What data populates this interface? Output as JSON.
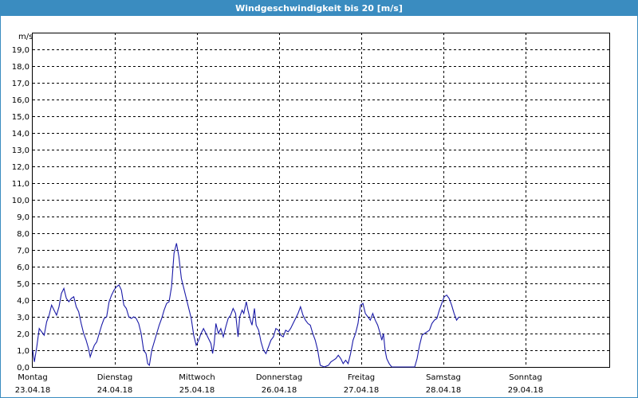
{
  "window": {
    "title": "Windgeschwindigkeit bis 20 [m/s]"
  },
  "colors": {
    "titlebar": "#3a8cc0",
    "line": "#1a1aa8",
    "grid": "#000000"
  },
  "chart_data": {
    "type": "line",
    "title": "Windgeschwindigkeit bis 20 [m/s]",
    "ylabel": "m/s",
    "ylim": [
      0,
      20
    ],
    "yticks": [
      "0,0",
      "1,0",
      "2,0",
      "3,0",
      "4,0",
      "5,0",
      "6,0",
      "7,0",
      "8,0",
      "9,0",
      "10,0",
      "11,0",
      "12,0",
      "13,0",
      "14,0",
      "15,0",
      "16,0",
      "17,0",
      "18,0",
      "19,0"
    ],
    "x_range_days": [
      0,
      7
    ],
    "x_ticks": [
      {
        "day": "Montag",
        "date": "23.04.18"
      },
      {
        "day": "Dienstag",
        "date": "24.04.18"
      },
      {
        "day": "Mittwoch",
        "date": "25.04.18"
      },
      {
        "day": "Donnerstag",
        "date": "26.04.18"
      },
      {
        "day": "Freitag",
        "date": "27.04.18"
      },
      {
        "day": "Samstag",
        "date": "28.04.18"
      },
      {
        "day": "Sonntag",
        "date": "29.04.18"
      }
    ],
    "grid": true,
    "series": [
      {
        "values": [
          [
            0.0,
            1.0
          ],
          [
            0.02,
            0.3
          ],
          [
            0.05,
            1.2
          ],
          [
            0.08,
            2.3
          ],
          [
            0.11,
            2.1
          ],
          [
            0.14,
            1.9
          ],
          [
            0.17,
            2.7
          ],
          [
            0.2,
            3.1
          ],
          [
            0.23,
            3.7
          ],
          [
            0.26,
            3.4
          ],
          [
            0.29,
            3.1
          ],
          [
            0.32,
            3.6
          ],
          [
            0.35,
            4.4
          ],
          [
            0.38,
            4.7
          ],
          [
            0.41,
            4.1
          ],
          [
            0.44,
            3.9
          ],
          [
            0.47,
            4.1
          ],
          [
            0.5,
            4.2
          ],
          [
            0.53,
            3.6
          ],
          [
            0.56,
            3.3
          ],
          [
            0.59,
            2.6
          ],
          [
            0.62,
            2.0
          ],
          [
            0.65,
            1.6
          ],
          [
            0.68,
            1.1
          ],
          [
            0.7,
            0.6
          ],
          [
            0.72,
            0.9
          ],
          [
            0.75,
            1.3
          ],
          [
            0.78,
            1.5
          ],
          [
            0.81,
            2.0
          ],
          [
            0.84,
            2.5
          ],
          [
            0.87,
            2.9
          ],
          [
            0.9,
            3.0
          ],
          [
            0.93,
            3.9
          ],
          [
            0.96,
            4.3
          ],
          [
            0.99,
            4.6
          ],
          [
            1.02,
            4.8
          ],
          [
            1.05,
            4.9
          ],
          [
            1.08,
            4.6
          ],
          [
            1.11,
            3.7
          ],
          [
            1.14,
            3.5
          ],
          [
            1.17,
            3.0
          ],
          [
            1.2,
            2.9
          ],
          [
            1.23,
            3.0
          ],
          [
            1.26,
            2.9
          ],
          [
            1.29,
            2.6
          ],
          [
            1.32,
            2.0
          ],
          [
            1.35,
            1.0
          ],
          [
            1.38,
            0.8
          ],
          [
            1.4,
            0.2
          ],
          [
            1.42,
            0.1
          ],
          [
            1.45,
            1.0
          ],
          [
            1.48,
            1.5
          ],
          [
            1.51,
            2.0
          ],
          [
            1.54,
            2.5
          ],
          [
            1.57,
            2.9
          ],
          [
            1.6,
            3.4
          ],
          [
            1.63,
            3.8
          ],
          [
            1.66,
            3.9
          ],
          [
            1.69,
            4.8
          ],
          [
            1.72,
            6.8
          ],
          [
            1.75,
            7.4
          ],
          [
            1.78,
            6.6
          ],
          [
            1.81,
            5.3
          ],
          [
            1.84,
            4.7
          ],
          [
            1.87,
            4.1
          ],
          [
            1.9,
            3.5
          ],
          [
            1.93,
            2.9
          ],
          [
            1.96,
            1.9
          ],
          [
            1.99,
            1.3
          ],
          [
            2.02,
            1.6
          ],
          [
            2.05,
            2.0
          ],
          [
            2.08,
            2.3
          ],
          [
            2.11,
            2.0
          ],
          [
            2.14,
            1.7
          ],
          [
            2.17,
            1.4
          ],
          [
            2.19,
            0.8
          ],
          [
            2.21,
            1.4
          ],
          [
            2.23,
            2.6
          ],
          [
            2.26,
            2.0
          ],
          [
            2.29,
            2.3
          ],
          [
            2.32,
            1.8
          ],
          [
            2.35,
            2.4
          ],
          [
            2.38,
            2.9
          ],
          [
            2.41,
            3.1
          ],
          [
            2.44,
            3.5
          ],
          [
            2.47,
            3.2
          ],
          [
            2.5,
            1.8
          ],
          [
            2.52,
            3.0
          ],
          [
            2.55,
            3.4
          ],
          [
            2.57,
            3.2
          ],
          [
            2.6,
            3.9
          ],
          [
            2.62,
            3.4
          ],
          [
            2.65,
            2.8
          ],
          [
            2.67,
            2.5
          ],
          [
            2.7,
            3.5
          ],
          [
            2.72,
            2.5
          ],
          [
            2.75,
            2.2
          ],
          [
            2.78,
            1.5
          ],
          [
            2.81,
            1.0
          ],
          [
            2.84,
            0.8
          ],
          [
            2.87,
            1.2
          ],
          [
            2.9,
            1.6
          ],
          [
            2.93,
            1.8
          ],
          [
            2.96,
            2.3
          ],
          [
            2.99,
            2.2
          ],
          [
            3.02,
            1.9
          ],
          [
            3.05,
            1.8
          ],
          [
            3.08,
            2.2
          ],
          [
            3.11,
            2.1
          ],
          [
            3.14,
            2.3
          ],
          [
            3.17,
            2.6
          ],
          [
            3.2,
            2.9
          ],
          [
            3.23,
            3.2
          ],
          [
            3.26,
            3.6
          ],
          [
            3.29,
            3.1
          ],
          [
            3.32,
            2.8
          ],
          [
            3.35,
            2.6
          ],
          [
            3.38,
            2.5
          ],
          [
            3.41,
            2.0
          ],
          [
            3.44,
            1.6
          ],
          [
            3.47,
            1.0
          ],
          [
            3.5,
            0.1
          ],
          [
            3.55,
            0.0
          ],
          [
            3.6,
            0.1
          ],
          [
            3.63,
            0.3
          ],
          [
            3.66,
            0.4
          ],
          [
            3.69,
            0.5
          ],
          [
            3.72,
            0.7
          ],
          [
            3.75,
            0.5
          ],
          [
            3.78,
            0.2
          ],
          [
            3.81,
            0.4
          ],
          [
            3.84,
            0.2
          ],
          [
            3.87,
            0.8
          ],
          [
            3.9,
            1.6
          ],
          [
            3.93,
            2.0
          ],
          [
            3.96,
            2.6
          ],
          [
            3.99,
            3.7
          ],
          [
            4.02,
            3.8
          ],
          [
            4.05,
            3.2
          ],
          [
            4.08,
            3.0
          ],
          [
            4.11,
            2.8
          ],
          [
            4.14,
            3.2
          ],
          [
            4.17,
            2.8
          ],
          [
            4.2,
            2.5
          ],
          [
            4.23,
            2.0
          ],
          [
            4.25,
            1.6
          ],
          [
            4.27,
            2.0
          ],
          [
            4.29,
            1.0
          ],
          [
            4.31,
            0.5
          ],
          [
            4.34,
            0.2
          ],
          [
            4.37,
            0.0
          ],
          [
            4.65,
            0.0
          ],
          [
            4.68,
            0.5
          ],
          [
            4.71,
            1.3
          ],
          [
            4.74,
            1.9
          ],
          [
            4.77,
            2.0
          ],
          [
            4.8,
            2.1
          ],
          [
            4.83,
            2.2
          ],
          [
            4.86,
            2.6
          ],
          [
            4.89,
            2.8
          ],
          [
            4.92,
            2.9
          ],
          [
            4.95,
            3.4
          ],
          [
            4.98,
            3.8
          ],
          [
            5.01,
            4.2
          ],
          [
            5.04,
            4.3
          ],
          [
            5.07,
            4.1
          ],
          [
            5.1,
            3.7
          ],
          [
            5.13,
            3.2
          ],
          [
            5.16,
            2.8
          ],
          [
            5.19,
            3.0
          ]
        ]
      }
    ]
  }
}
